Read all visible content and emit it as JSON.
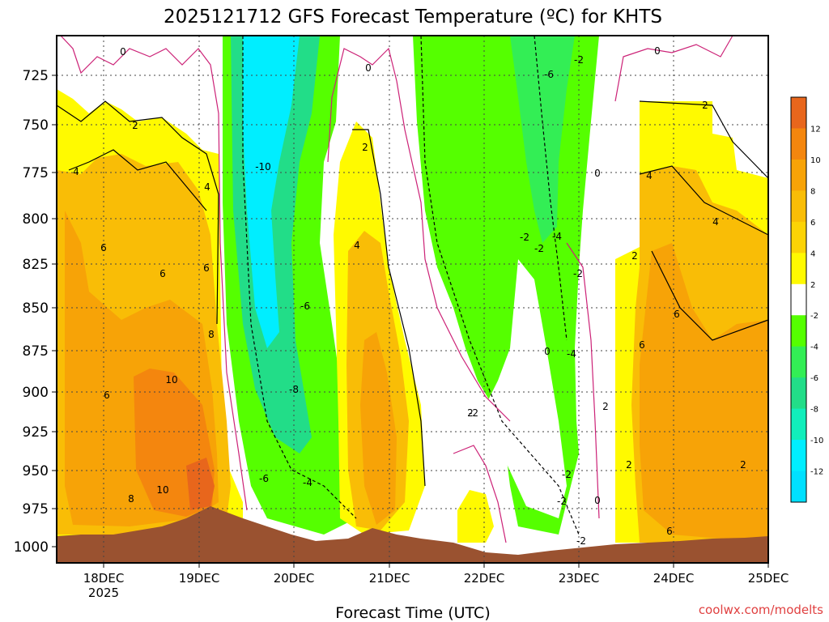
{
  "chart_data": {
    "type": "heatmap",
    "title": "2025121712 GFS Forecast Temperature (ºC) for KHTS",
    "xlabel": "Forecast Time (UTC)",
    "ylabel": "",
    "y_scale": "pressure (inverted, top to bottom)",
    "y_ticks": [
      725,
      750,
      775,
      800,
      825,
      850,
      875,
      900,
      925,
      950,
      975,
      1000
    ],
    "x_ticks": [
      "18DEC",
      "19DEC",
      "20DEC",
      "21DEC",
      "22DEC",
      "23DEC",
      "24DEC",
      "25DEC"
    ],
    "x_sublabel": "2025",
    "colorbar": {
      "labels": [
        12,
        10,
        8,
        6,
        4,
        2,
        -2,
        -4,
        -6,
        -8,
        -10,
        -12
      ],
      "colors": [
        "#e8661c",
        "#f4860e",
        "#f7a307",
        "#f9bd06",
        "#fcd305",
        "#fffa00",
        "#ffffff",
        "#55ff00",
        "#33ee55",
        "#22dd88",
        "#11eebb",
        "#00eeff",
        "#00e0ff"
      ]
    },
    "contour_labels": [
      {
        "t": "0"
      },
      {
        "t": "0"
      },
      {
        "t": "0"
      },
      {
        "t": "0"
      },
      {
        "t": "0"
      },
      {
        "t": "0"
      },
      {
        "t": "2"
      },
      {
        "t": "2"
      },
      {
        "t": "2"
      },
      {
        "t": "2"
      },
      {
        "t": "2"
      },
      {
        "t": "2"
      },
      {
        "t": "4"
      },
      {
        "t": "4"
      },
      {
        "t": "4"
      },
      {
        "t": "4"
      },
      {
        "t": "4"
      },
      {
        "t": "6"
      },
      {
        "t": "6"
      },
      {
        "t": "6"
      },
      {
        "t": "6"
      },
      {
        "t": "6"
      },
      {
        "t": "6"
      },
      {
        "t": "6"
      },
      {
        "t": "8"
      },
      {
        "t": "8"
      },
      {
        "t": "10"
      },
      {
        "t": "10"
      },
      {
        "t": "-10"
      },
      {
        "t": "-6"
      },
      {
        "t": "-6"
      },
      {
        "t": "-6"
      },
      {
        "t": "-8"
      },
      {
        "t": "-4"
      },
      {
        "t": "-4"
      },
      {
        "t": "-4"
      },
      {
        "t": "-2"
      },
      {
        "t": "-2"
      },
      {
        "t": "-2"
      },
      {
        "t": "-2"
      },
      {
        "t": "-2"
      },
      {
        "t": "-2"
      },
      {
        "t": "-2"
      },
      {
        "t": "-2"
      },
      {
        "t": "2"
      },
      {
        "t": "2"
      }
    ]
  },
  "credit": "coolwx.com/modelts"
}
